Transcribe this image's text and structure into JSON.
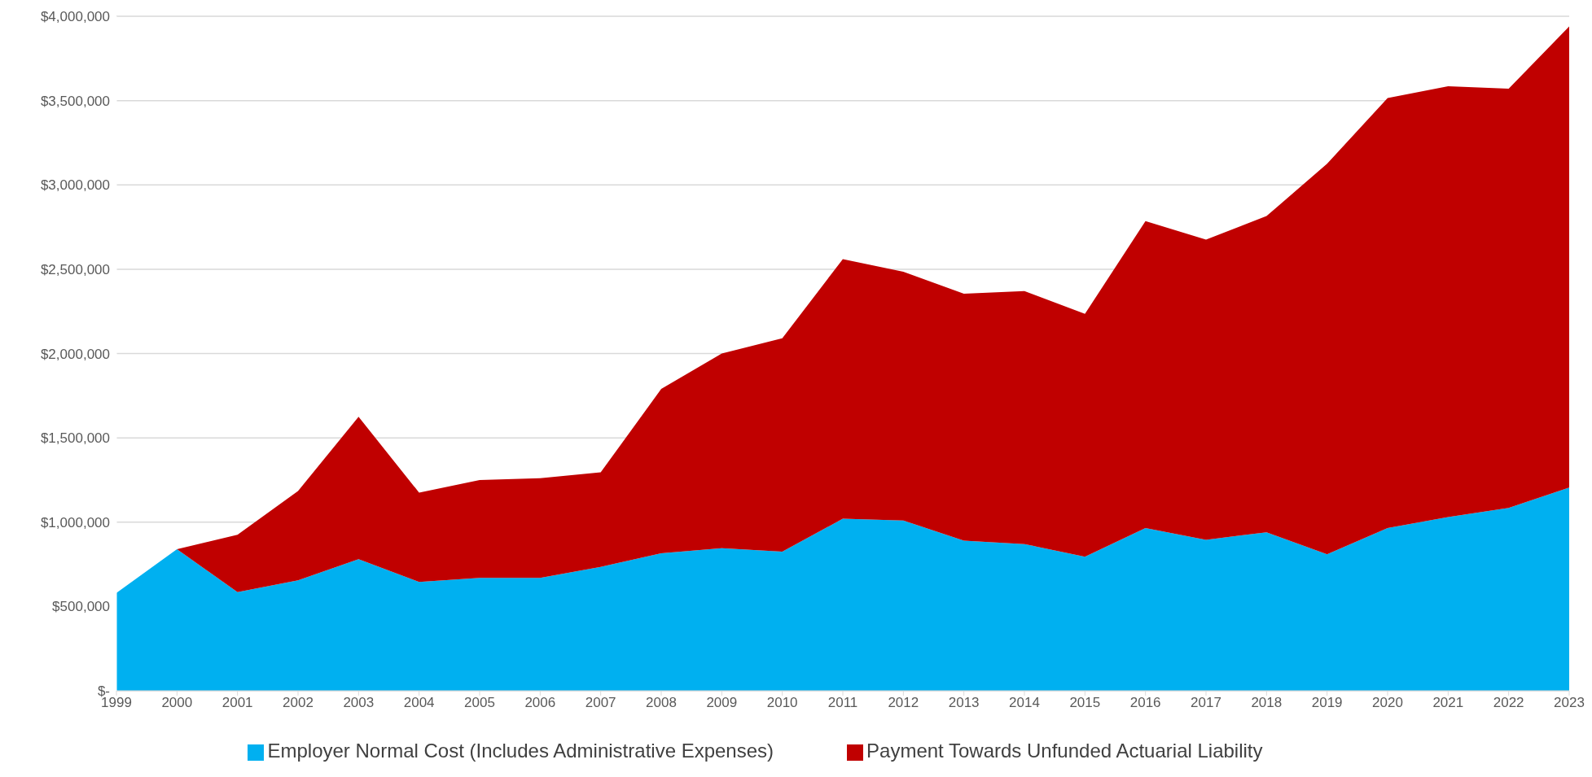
{
  "chart_data": {
    "type": "area",
    "stacked": true,
    "categories": [
      "1999",
      "2000",
      "2001",
      "2002",
      "2003",
      "2004",
      "2005",
      "2006",
      "2007",
      "2008",
      "2009",
      "2010",
      "2011",
      "2012",
      "2013",
      "2014",
      "2015",
      "2016",
      "2017",
      "2018",
      "2019",
      "2020",
      "2021",
      "2022",
      "2023"
    ],
    "series": [
      {
        "name": "Employer Normal Cost (Includes Administrative Expenses)",
        "color": "#00b0f0",
        "values": [
          580000,
          840000,
          585000,
          655000,
          780000,
          645000,
          670000,
          670000,
          735000,
          815000,
          845000,
          825000,
          1020000,
          1010000,
          890000,
          870000,
          795000,
          965000,
          895000,
          940000,
          810000,
          965000,
          1030000,
          1085000,
          1205000
        ]
      },
      {
        "name": "Payment Towards Unfunded Actuarial Liability",
        "color": "#c00000",
        "values": [
          0,
          0,
          340000,
          530000,
          845000,
          530000,
          580000,
          590000,
          560000,
          975000,
          1155000,
          1265000,
          1540000,
          1475000,
          1465000,
          1500000,
          1440000,
          1820000,
          1780000,
          1875000,
          2315000,
          2550000,
          2555000,
          2485000,
          2735000
        ]
      }
    ],
    "ylim": [
      0,
      4000000
    ],
    "yticks": [
      {
        "value": 0,
        "label": "$-"
      },
      {
        "value": 500000,
        "label": "$500,000"
      },
      {
        "value": 1000000,
        "label": "$1,000,000"
      },
      {
        "value": 1500000,
        "label": "$1,500,000"
      },
      {
        "value": 2000000,
        "label": "$2,000,000"
      },
      {
        "value": 2500000,
        "label": "$2,500,000"
      },
      {
        "value": 3000000,
        "label": "$3,000,000"
      },
      {
        "value": 3500000,
        "label": "$3,500,000"
      },
      {
        "value": 4000000,
        "label": "$4,000,000"
      }
    ],
    "grid": "y",
    "legend": "bottom"
  }
}
